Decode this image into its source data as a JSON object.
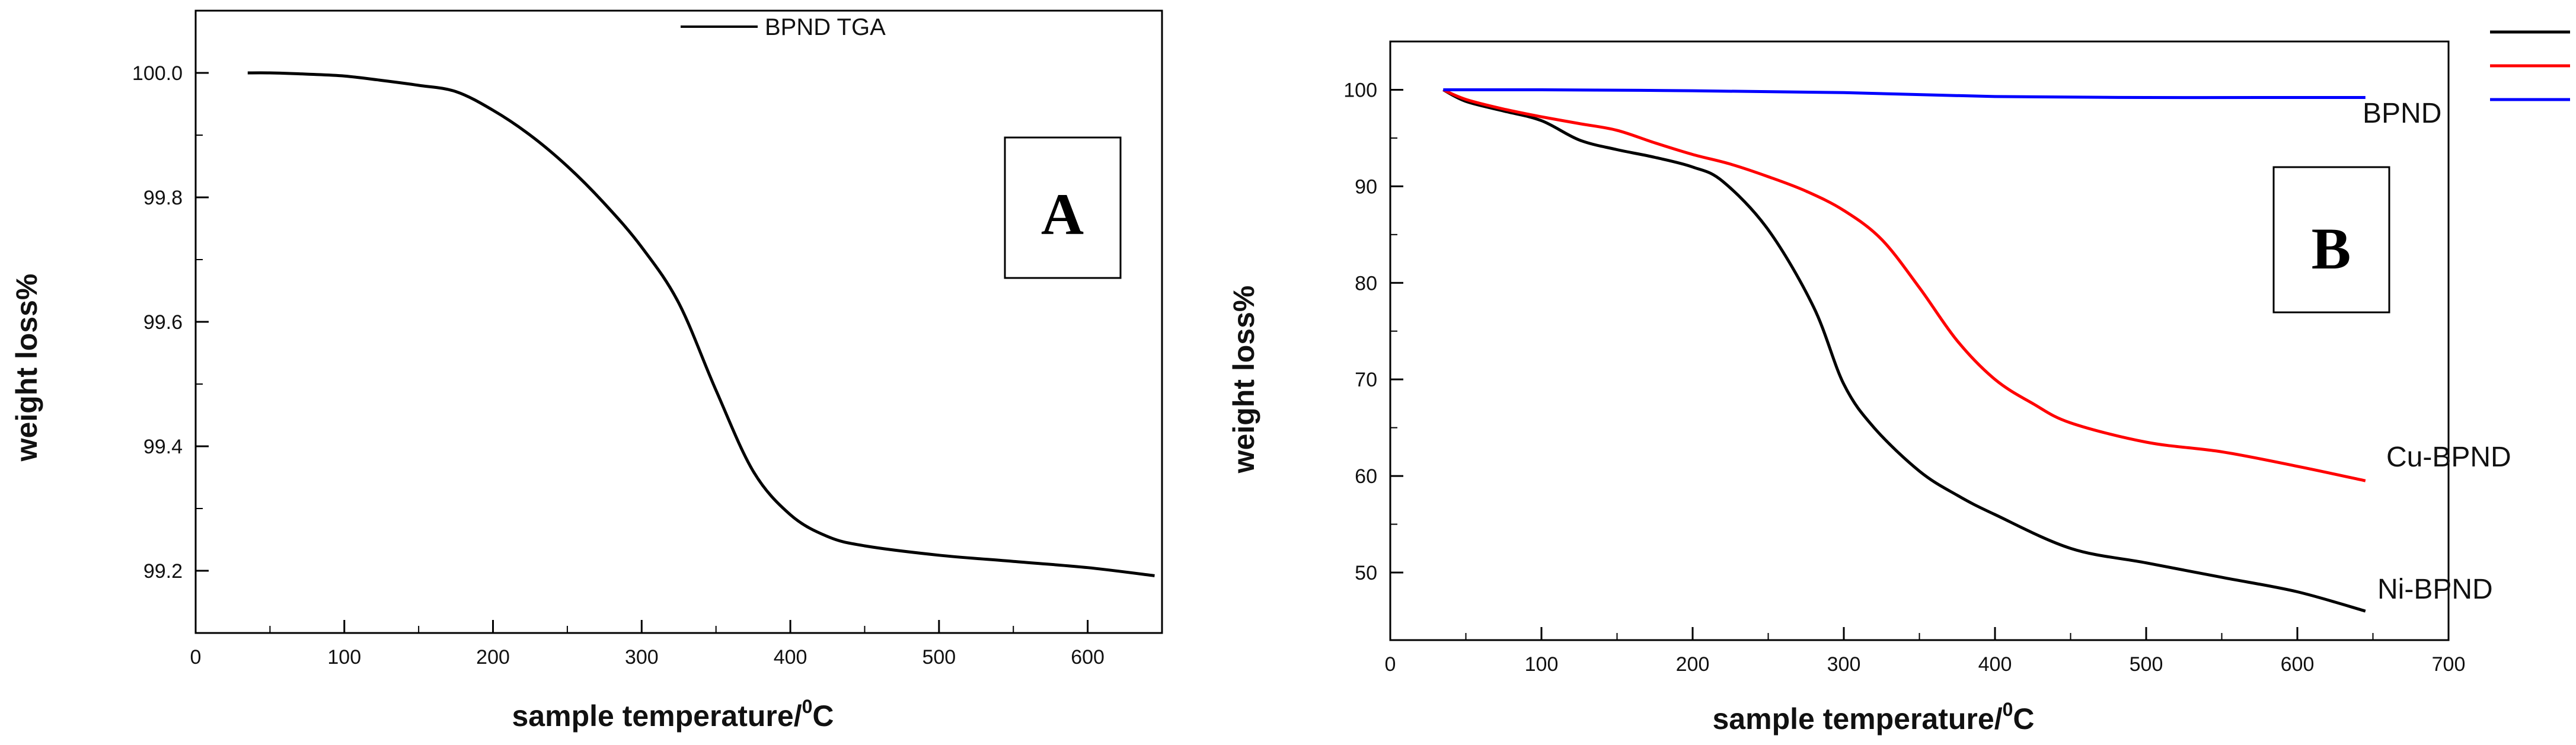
{
  "chart_data": [
    {
      "id": "A",
      "type": "line",
      "panel_label": "A",
      "xlabel": "sample temperature/",
      "xlabel_sup": "0",
      "xlabel_unit": "C",
      "ylabel": "weight loss%",
      "xlim": [
        0,
        650
      ],
      "ylim": [
        99.1,
        100.1
      ],
      "xticks": [
        0,
        100,
        200,
        300,
        400,
        500,
        600
      ],
      "yticks": [
        99.2,
        99.4,
        99.6,
        99.8,
        100.0
      ],
      "ytick_labels": [
        "99.2",
        "99.4",
        "99.6",
        "99.8",
        "100.0"
      ],
      "legend": {
        "position": "top-center",
        "entries": [
          "BPND TGA"
        ]
      },
      "series": [
        {
          "name": "BPND TGA",
          "color": "#000000",
          "x": [
            35,
            50,
            75,
            100,
            125,
            150,
            175,
            200,
            225,
            250,
            275,
            300,
            325,
            350,
            375,
            400,
            425,
            450,
            500,
            550,
            600,
            645
          ],
          "y": [
            100.0,
            100.0,
            99.998,
            99.995,
            99.988,
            99.98,
            99.97,
            99.94,
            99.9,
            99.85,
            99.79,
            99.72,
            99.63,
            99.49,
            99.36,
            99.29,
            99.255,
            99.24,
            99.225,
            99.215,
            99.205,
            99.192
          ]
        }
      ]
    },
    {
      "id": "B",
      "type": "line",
      "panel_label": "B",
      "xlabel": "sample temperature/",
      "xlabel_sup": "0",
      "xlabel_unit": "C",
      "ylabel": "weight loss%",
      "xlim": [
        0,
        700
      ],
      "ylim": [
        43,
        105
      ],
      "xticks": [
        0,
        100,
        200,
        300,
        400,
        500,
        600,
        700
      ],
      "yticks": [
        50,
        60,
        70,
        80,
        90,
        100
      ],
      "legend": {
        "position": "top-right",
        "entries": [
          "",
          "",
          ""
        ]
      },
      "series": [
        {
          "name": "Ni-BPND",
          "color": "#000000",
          "x": [
            35,
            50,
            75,
            100,
            125,
            150,
            175,
            200,
            220,
            250,
            280,
            300,
            320,
            350,
            375,
            400,
            450,
            500,
            550,
            600,
            645
          ],
          "y": [
            100,
            98.8,
            97.8,
            96.8,
            94.8,
            93.8,
            93.0,
            92.0,
            90.5,
            85.5,
            77.5,
            69.5,
            65.0,
            60.5,
            58.0,
            56.0,
            52.5,
            51.0,
            49.5,
            48.0,
            46.0
          ]
        },
        {
          "name": "Cu-BPND",
          "color": "#ff0000",
          "x": [
            35,
            50,
            75,
            100,
            125,
            150,
            175,
            200,
            225,
            250,
            275,
            300,
            325,
            350,
            375,
            400,
            425,
            450,
            500,
            550,
            600,
            645
          ],
          "y": [
            100,
            99.0,
            98.0,
            97.2,
            96.5,
            95.8,
            94.5,
            93.3,
            92.3,
            91.0,
            89.5,
            87.5,
            84.5,
            79.5,
            74.0,
            70.0,
            67.5,
            65.5,
            63.5,
            62.5,
            61.0,
            59.5
          ]
        },
        {
          "name": "BPND",
          "color": "#0000ff",
          "x": [
            35,
            100,
            200,
            300,
            400,
            500,
            600,
            645
          ],
          "y": [
            100,
            100,
            99.9,
            99.7,
            99.3,
            99.2,
            99.2,
            99.2
          ]
        }
      ],
      "annotations": [
        {
          "text": "BPND",
          "series": "BPND"
        },
        {
          "text": "Cu-BPND",
          "series": "Cu-BPND"
        },
        {
          "text": "Ni-BPND",
          "series": "Ni-BPND"
        }
      ]
    }
  ]
}
